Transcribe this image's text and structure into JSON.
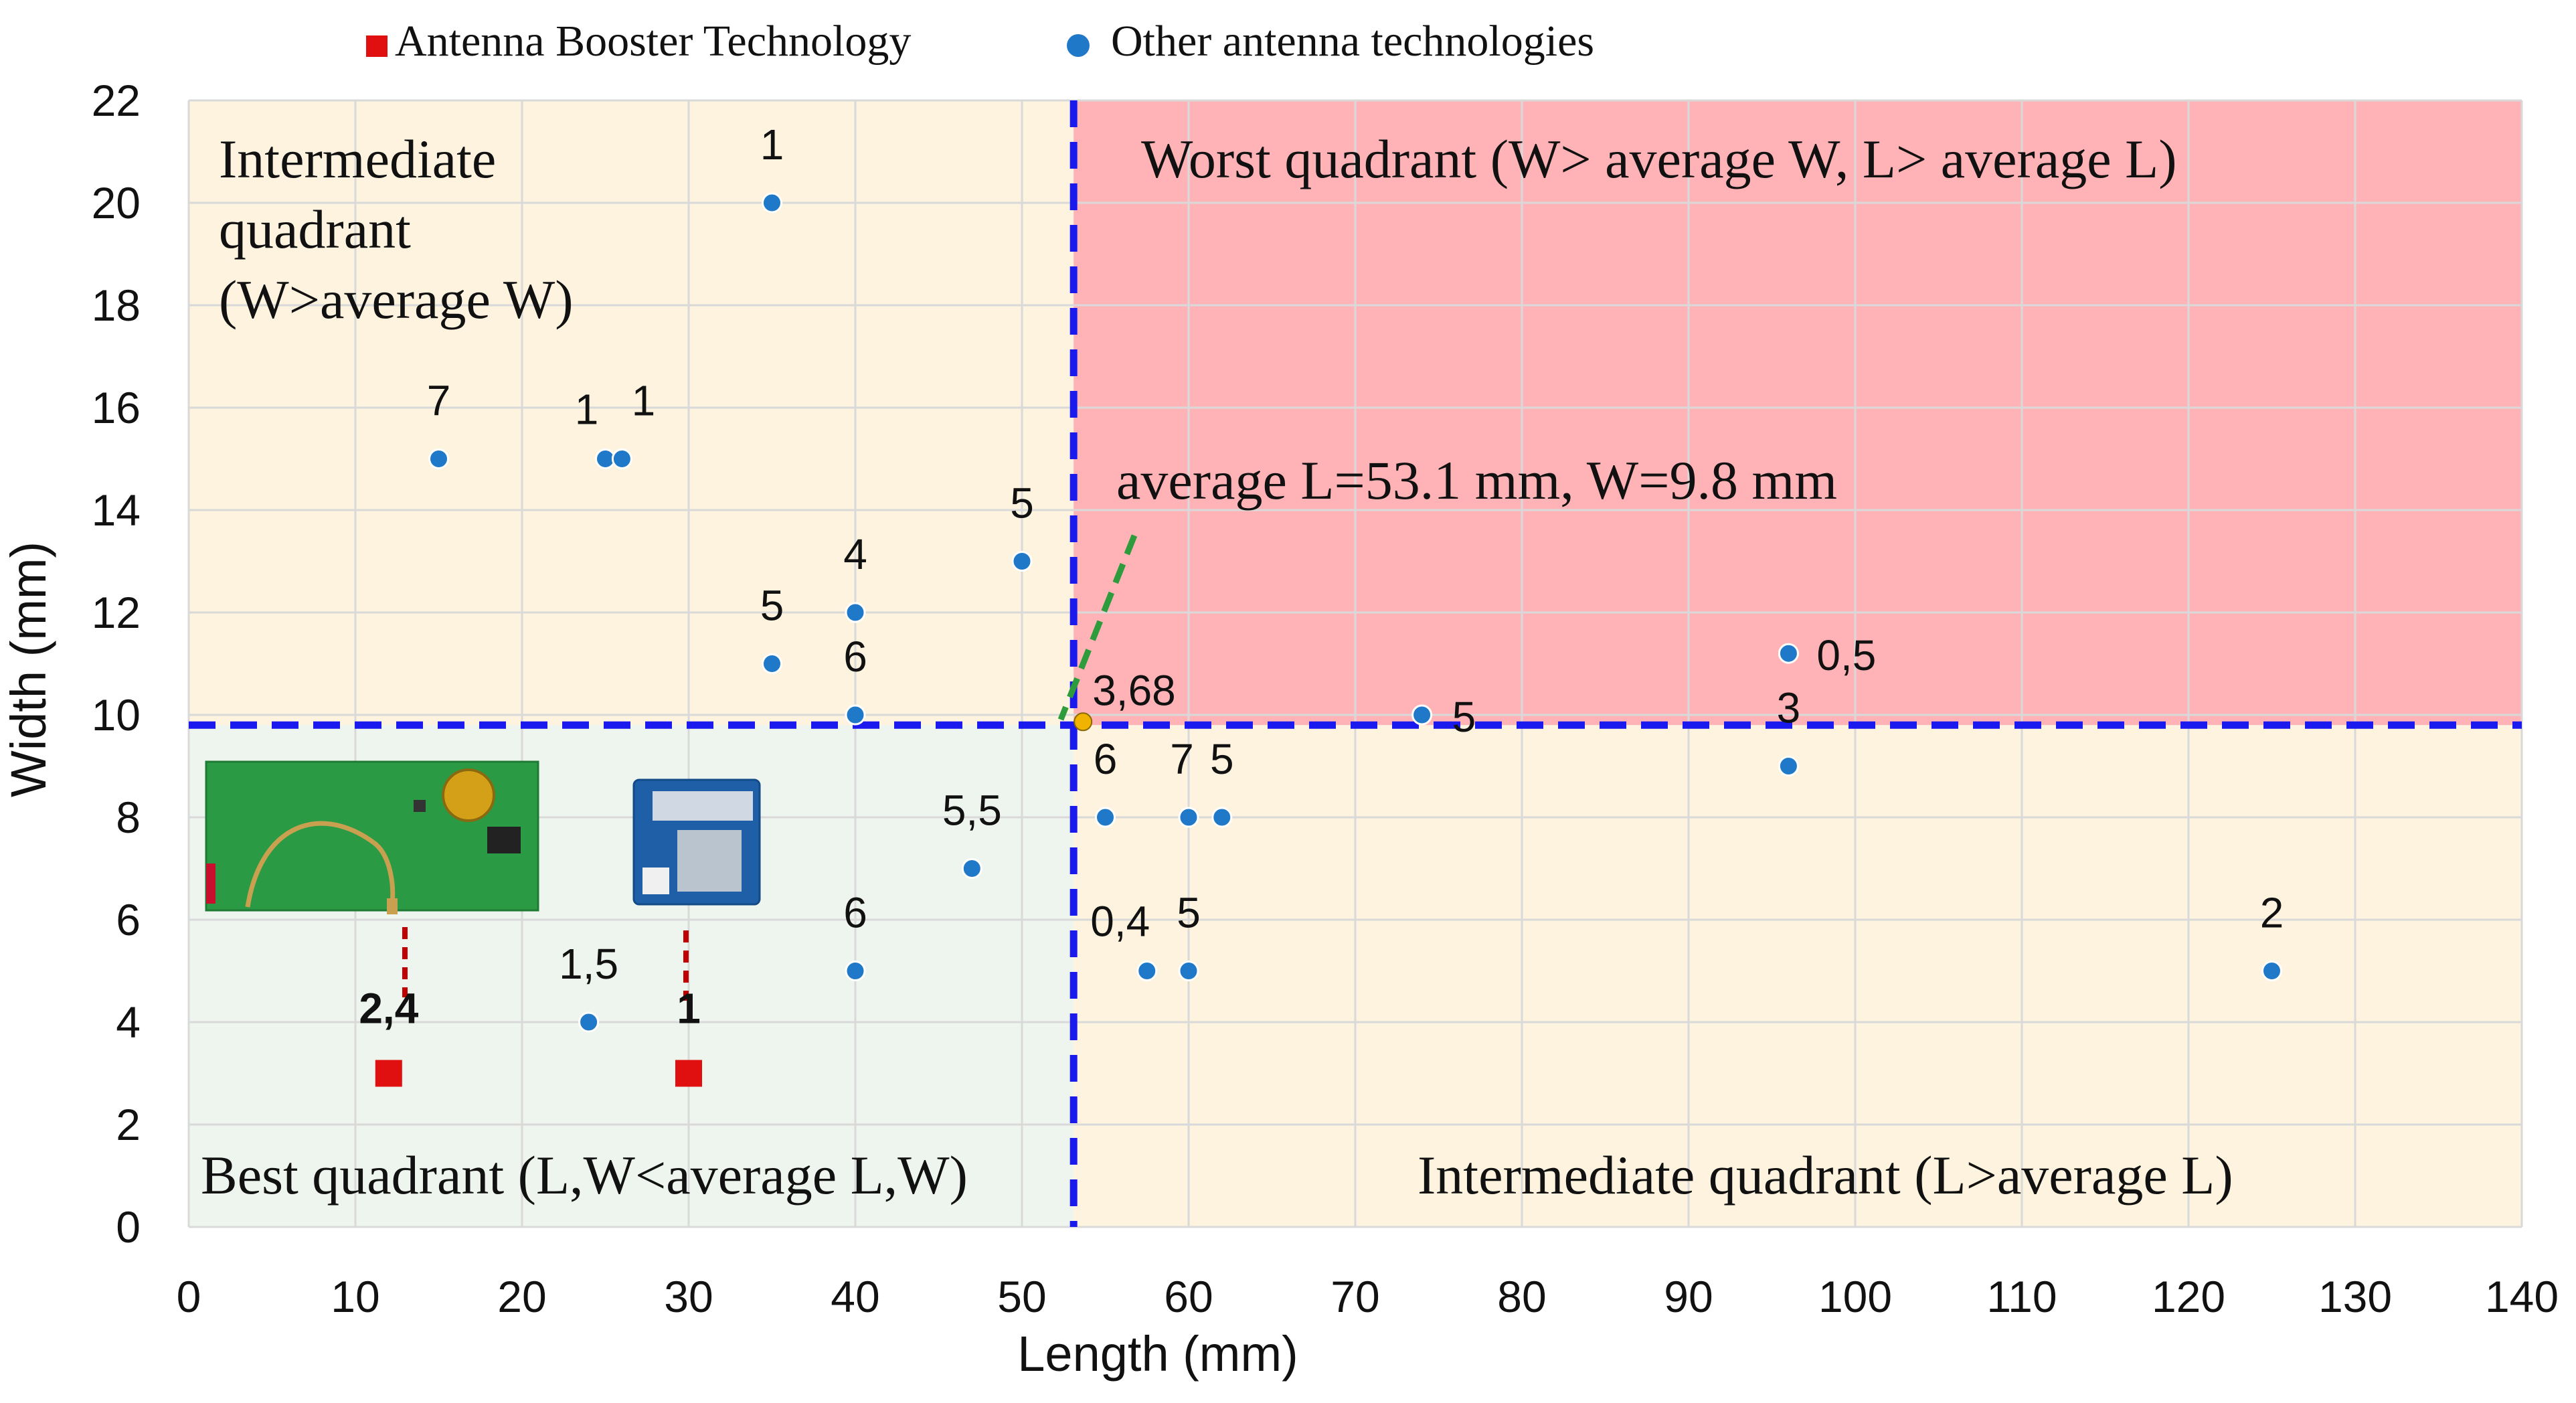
{
  "chart_data": {
    "type": "scatter",
    "xlabel": "Length (mm)",
    "ylabel": "Width (mm)",
    "xlim": [
      0,
      140
    ],
    "ylim": [
      0,
      22
    ],
    "xticks": [
      0,
      10,
      20,
      30,
      40,
      50,
      60,
      70,
      80,
      90,
      100,
      110,
      120,
      130,
      140
    ],
    "yticks": [
      0,
      2,
      4,
      6,
      8,
      10,
      12,
      14,
      16,
      18,
      20,
      22
    ],
    "grid": true,
    "legend_position": "top",
    "average": {
      "length": 53.1,
      "width": 9.8,
      "label": "average L=53.1 mm, W=9.8 mm"
    },
    "quadrants": [
      {
        "id": "best",
        "label": "Best quadrant (L,W<average L,W)",
        "color": "#eef5ee"
      },
      {
        "id": "inter-w",
        "label_lines": [
          "Intermediate",
          "quadrant",
          "(W>average W)"
        ],
        "color": "#fdf3df"
      },
      {
        "id": "worst",
        "label": "Worst quadrant (W> average W, L> average L)",
        "color": "#ffb3b6"
      },
      {
        "id": "inter-l",
        "label": "Intermediate quadrant (L>average L)",
        "color": "#fdf3df"
      }
    ],
    "series": [
      {
        "name": "Antenna Booster Technology",
        "marker": "square",
        "color": "#e01010",
        "points": [
          {
            "x": 12,
            "y": 3,
            "label": "2,4"
          },
          {
            "x": 30,
            "y": 3,
            "label": "1"
          }
        ]
      },
      {
        "name": "Other antenna technologies",
        "marker": "circle",
        "color": "#1f78c8",
        "points": [
          {
            "x": 35,
            "y": 20,
            "label": "1"
          },
          {
            "x": 15,
            "y": 15,
            "label": "7"
          },
          {
            "x": 25,
            "y": 15,
            "label": "1"
          },
          {
            "x": 26,
            "y": 15,
            "label": "1"
          },
          {
            "x": 50,
            "y": 13,
            "label": "5"
          },
          {
            "x": 40,
            "y": 12,
            "label": "4"
          },
          {
            "x": 35,
            "y": 11,
            "label": "5"
          },
          {
            "x": 40,
            "y": 10,
            "label": "6"
          },
          {
            "x": 47,
            "y": 7,
            "label": "5,5"
          },
          {
            "x": 40,
            "y": 5,
            "label": "6"
          },
          {
            "x": 24,
            "y": 4,
            "label": "1,5"
          },
          {
            "x": 55,
            "y": 8,
            "label": "6"
          },
          {
            "x": 60,
            "y": 8,
            "label": "7"
          },
          {
            "x": 62,
            "y": 8,
            "label": "5"
          },
          {
            "x": 57.5,
            "y": 5,
            "label": "0,4"
          },
          {
            "x": 60,
            "y": 5,
            "label": "5"
          },
          {
            "x": 74,
            "y": 10,
            "label": "5"
          },
          {
            "x": 96,
            "y": 11.2,
            "label": "0,5"
          },
          {
            "x": 96,
            "y": 9,
            "label": "3"
          },
          {
            "x": 125,
            "y": 5,
            "label": "2"
          }
        ]
      }
    ],
    "average_point": {
      "x": 53.1,
      "y": 9.8,
      "label": "3,68",
      "color": "#f0b400"
    }
  }
}
